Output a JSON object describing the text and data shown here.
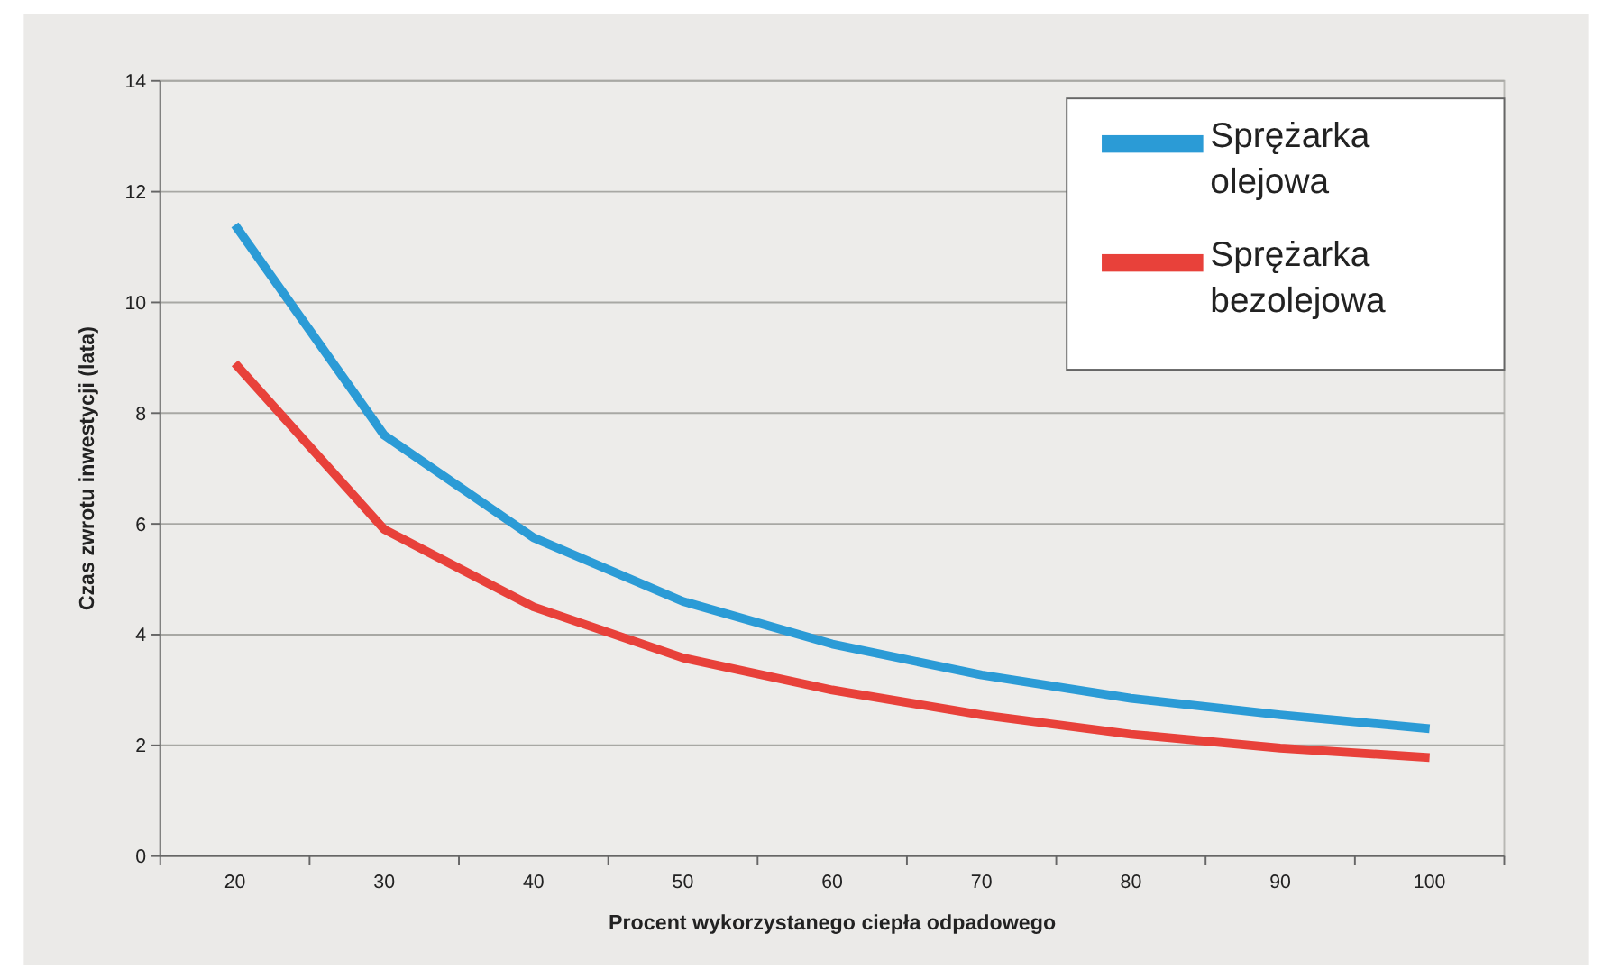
{
  "chart_data": {
    "type": "line",
    "xlabel": "Procent wykorzystanego ciepła odpadowego",
    "ylabel": "Czas zwrotu inwestycji (lata)",
    "categories": [
      "20",
      "30",
      "40",
      "50",
      "60",
      "70",
      "80",
      "90",
      "100"
    ],
    "series": [
      {
        "name": "Sprężarka olejowa",
        "color": "#2b9bd6",
        "values": [
          11.4,
          7.6,
          5.75,
          4.6,
          3.83,
          3.27,
          2.85,
          2.55,
          2.3
        ]
      },
      {
        "name": "Sprężarka bezolejowa",
        "color": "#e8413a",
        "values": [
          8.9,
          5.9,
          4.5,
          3.58,
          3.0,
          2.55,
          2.2,
          1.95,
          1.78
        ]
      }
    ],
    "ylim": [
      0,
      14
    ],
    "yticks": [
      0,
      2,
      4,
      6,
      8,
      10,
      12,
      14
    ],
    "grid": "y",
    "legend": "top right",
    "line_style": "solid"
  }
}
